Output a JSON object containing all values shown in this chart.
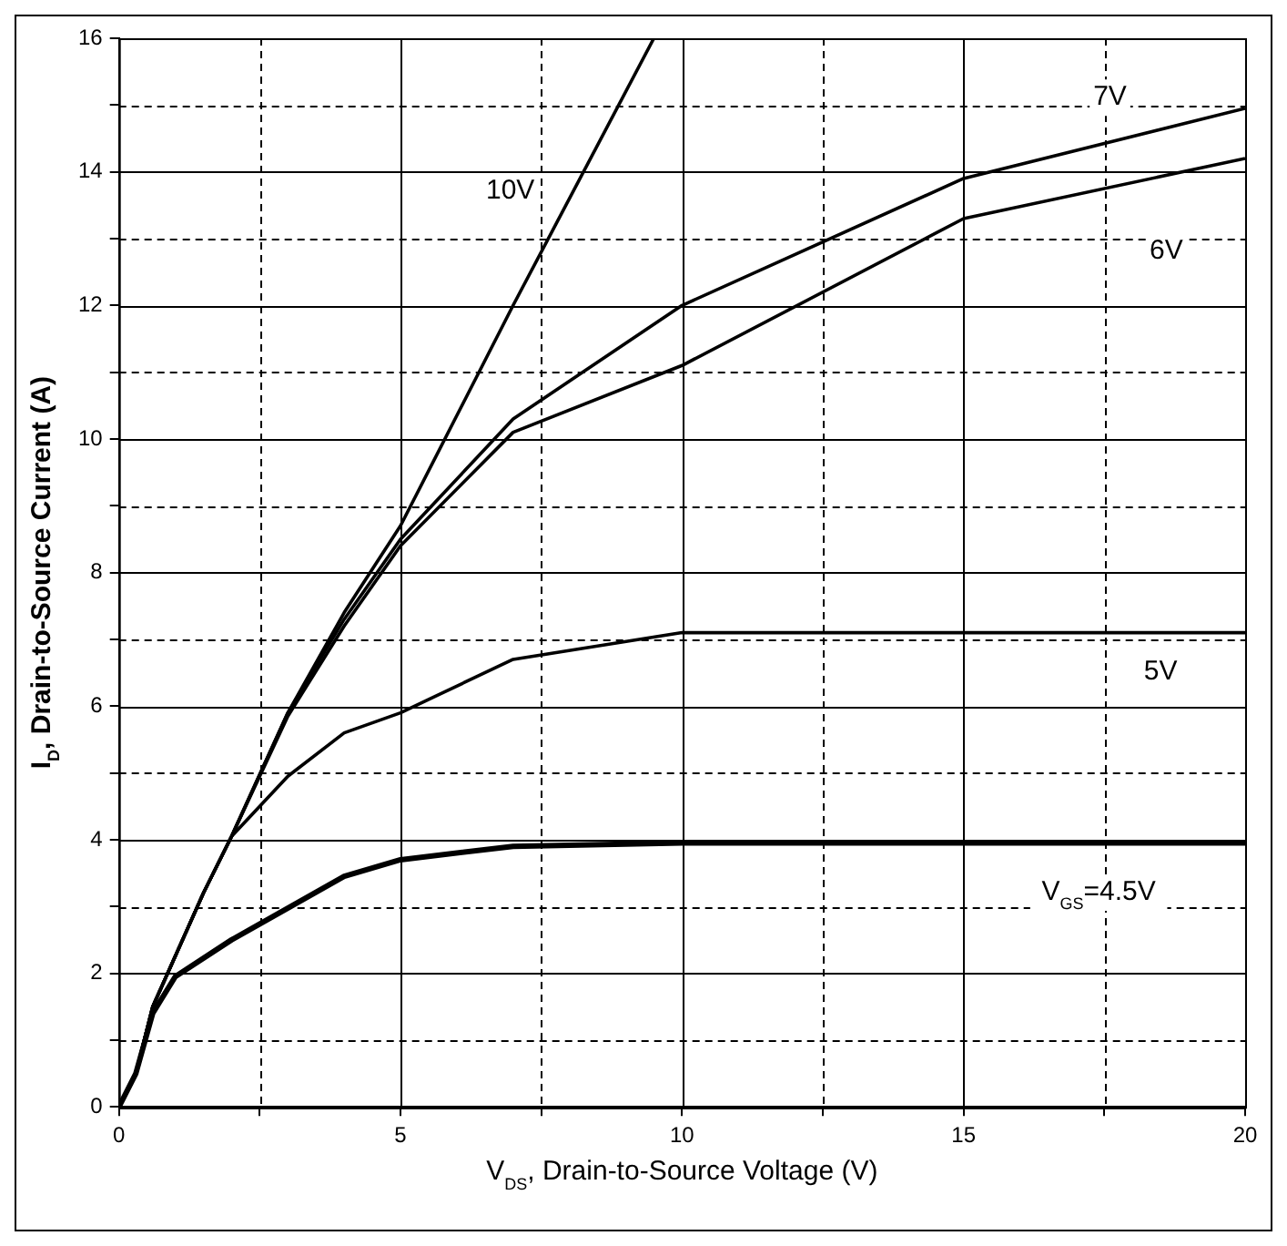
{
  "chart_data": {
    "type": "line",
    "xlabel": "V$_{DS}$, Drain-to-Source Voltage (V)",
    "ylabel": "I$_{D}$, Drain-to-Source Current (A)",
    "xlim": [
      0,
      20
    ],
    "xticks": [
      0,
      {
        "value": 2.5,
        "label": null
      },
      5,
      {
        "value": 7.5,
        "label": null
      },
      10,
      {
        "value": 12.5,
        "label": null
      },
      15,
      {
        "value": 17.5,
        "label": null
      },
      20
    ],
    "ylim": [
      0,
      16
    ],
    "yticks": [
      0,
      {
        "value": 1,
        "label": null
      },
      2,
      {
        "value": 3,
        "label": null
      },
      4,
      {
        "value": 5,
        "label": null
      },
      6,
      {
        "value": 7,
        "label": null
      },
      8,
      {
        "value": 9,
        "label": null
      },
      10,
      {
        "value": 11,
        "label": null
      },
      12,
      {
        "value": 13,
        "label": null
      },
      14,
      {
        "value": 15,
        "label": null
      },
      16
    ],
    "grid": true,
    "legend": false,
    "marker": "none",
    "line_style": "solid",
    "series": [
      {
        "name": "10V",
        "color": "#000000",
        "x": [
          0,
          0.3,
          0.6,
          1.5,
          2,
          3,
          4,
          5,
          7,
          9.5
        ],
        "values": [
          0,
          0.5,
          1.5,
          3.2,
          4.05,
          5.9,
          7.4,
          8.7,
          12.0,
          16
        ]
      },
      {
        "name": "7V",
        "color": "#000000",
        "x": [
          0,
          0.3,
          0.6,
          1.5,
          2,
          3,
          4,
          5,
          7,
          10,
          15,
          20
        ],
        "values": [
          0,
          0.5,
          1.5,
          3.2,
          4.05,
          5.9,
          7.3,
          8.5,
          10.3,
          12.0,
          13.9,
          14.95
        ]
      },
      {
        "name": "6V",
        "color": "#000000",
        "x": [
          0,
          0.3,
          0.6,
          1.5,
          2,
          3,
          4,
          5,
          7,
          10,
          15,
          20
        ],
        "values": [
          0,
          0.5,
          1.5,
          3.2,
          4.05,
          5.85,
          7.2,
          8.4,
          10.1,
          11.1,
          13.3,
          14.2
        ]
      },
      {
        "name": "5V",
        "color": "#000000",
        "x": [
          0,
          0.3,
          0.6,
          1.5,
          2,
          3,
          4,
          5,
          7,
          10,
          20
        ],
        "values": [
          0,
          0.5,
          1.5,
          3.2,
          4.05,
          4.95,
          5.6,
          5.9,
          6.7,
          7.1,
          7.1
        ]
      },
      {
        "name": "V$_{GS}$=4.5V",
        "color": "#000000",
        "x": [
          0,
          0.3,
          0.6,
          1,
          2,
          4,
          5,
          7,
          10,
          20
        ],
        "values": [
          0,
          0.5,
          1.4,
          1.95,
          2.5,
          3.45,
          3.7,
          3.9,
          3.95,
          3.95
        ]
      }
    ]
  }
}
